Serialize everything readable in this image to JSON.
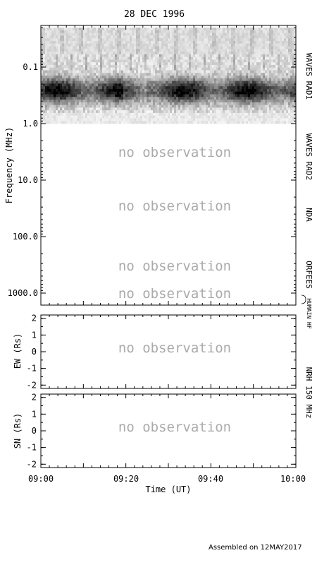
{
  "chart_data": [
    {
      "type": "heatmap",
      "panel": "dynamic-spectrum",
      "title": "28 DEC 1996",
      "ylabel": "Frequency (MHz)",
      "y_scale": "log",
      "y_inverted": true,
      "ylim": [
        0.02,
        1400
      ],
      "y_ticks": [
        0.1,
        1.0,
        10.0,
        100.0,
        1000.0
      ],
      "y_tick_labels": [
        "0.1",
        "1.0",
        "10.0",
        "100.0",
        "1000.0"
      ],
      "x_ticks": [
        "09:00",
        "09:20",
        "09:40",
        "10:00"
      ],
      "xlim": [
        "09:00",
        "10:00"
      ],
      "instruments": [
        {
          "label": "WAVES RAD1",
          "range_mhz": [
            0.02,
            1.0
          ]
        },
        {
          "label": "WAVES RAD2",
          "range_mhz": [
            1.0,
            14.0
          ]
        },
        {
          "label": "NDA",
          "range_mhz": [
            14.0,
            100.0
          ]
        },
        {
          "label": "ORFEES",
          "range_mhz": [
            140.0,
            1000.0
          ]
        },
        {
          "label": "HUMAIN HF",
          "range_mhz": [
            1000.0,
            1400.0
          ]
        }
      ],
      "no_data_regions": [
        {
          "label": "no observation",
          "frequency_mhz": 3.0
        },
        {
          "label": "no observation",
          "frequency_mhz": 30.0
        },
        {
          "label": "no observation",
          "frequency_mhz": 600.0
        },
        {
          "label": "no observation",
          "frequency_mhz": 1100.0
        }
      ],
      "emission_band": {
        "frequency_range_mhz": [
          0.15,
          0.45
        ],
        "time_range": [
          "09:00",
          "10:00"
        ]
      }
    },
    {
      "type": "scatter",
      "panel": "ew-position",
      "ylabel": "EW (Rs)",
      "ylim": [
        -2.2,
        2.2
      ],
      "y_ticks": [
        2,
        1,
        0,
        -1,
        -2
      ],
      "y_tick_labels": [
        "2",
        "1",
        "0",
        "-1",
        "-2"
      ],
      "no_data_label": "no observation"
    },
    {
      "type": "scatter",
      "panel": "sn-position",
      "ylabel": "SN (Rs)",
      "ylim": [
        -2.2,
        2.2
      ],
      "y_ticks": [
        2,
        1,
        0,
        -1,
        -2
      ],
      "y_tick_labels": [
        "2",
        "1",
        "0",
        "-1",
        "-2"
      ],
      "xlabel": "Time (UT)",
      "x_tick_labels": [
        "09:00",
        "09:20",
        "09:40",
        "10:00"
      ],
      "no_data_label": "no observation"
    }
  ],
  "right_label_nrh": "NRH 150 MHz",
  "footer": "Assembled on 12MAY2017"
}
